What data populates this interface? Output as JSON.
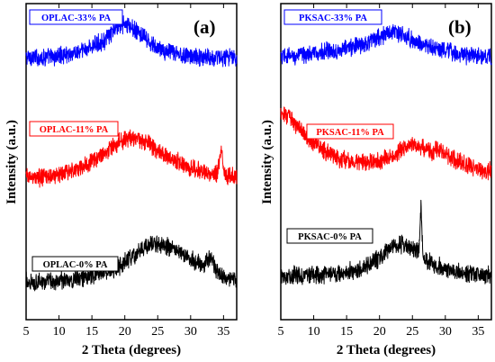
{
  "chart_data": [
    {
      "type": "line",
      "panel_label": "(a)",
      "xlabel": "2 Theta (degrees)",
      "ylabel": "Intensity (a.u.)",
      "xlim": [
        5,
        37
      ],
      "xticks": [
        5,
        10,
        15,
        20,
        25,
        30,
        35
      ],
      "yticks_shown": false,
      "legend_placement": "inline-per-series",
      "series": [
        {
          "name": "OPLAC-33% PA",
          "color": "#0000ff",
          "x": [
            5,
            7,
            9,
            11,
            13,
            15,
            17,
            18,
            19,
            20,
            21,
            22,
            23,
            24,
            26,
            28,
            30,
            32,
            34,
            36,
            37
          ],
          "y": [
            0.83,
            0.83,
            0.83,
            0.84,
            0.845,
            0.865,
            0.885,
            0.905,
            0.93,
            0.935,
            0.925,
            0.91,
            0.89,
            0.87,
            0.85,
            0.84,
            0.835,
            0.83,
            0.83,
            0.83,
            0.83
          ]
        },
        {
          "name": "OPLAC-11% PA",
          "color": "#ff0000",
          "x": [
            5,
            7,
            9,
            11,
            13,
            15,
            17,
            19,
            20,
            21,
            22,
            23,
            24,
            26,
            28,
            30,
            32,
            34,
            34.7,
            35,
            36,
            37
          ],
          "y": [
            0.45,
            0.45,
            0.455,
            0.465,
            0.48,
            0.5,
            0.53,
            0.56,
            0.57,
            0.575,
            0.57,
            0.565,
            0.55,
            0.52,
            0.5,
            0.48,
            0.465,
            0.46,
            0.55,
            0.465,
            0.455,
            0.455
          ]
        },
        {
          "name": "OPLAC-0% PA",
          "color": "#000000",
          "x": [
            5,
            7,
            9,
            11,
            13,
            15,
            17,
            19,
            21,
            22,
            23,
            24,
            25,
            26,
            27,
            28,
            30,
            31,
            32,
            33,
            34,
            35,
            36,
            37
          ],
          "y": [
            0.12,
            0.12,
            0.12,
            0.125,
            0.13,
            0.14,
            0.15,
            0.165,
            0.195,
            0.215,
            0.23,
            0.24,
            0.24,
            0.235,
            0.225,
            0.215,
            0.19,
            0.18,
            0.17,
            0.2,
            0.15,
            0.14,
            0.13,
            0.12
          ]
        }
      ]
    },
    {
      "type": "line",
      "panel_label": "(b)",
      "xlabel": "2 Theta (degrees)",
      "ylabel": "Intensity (a.u.)",
      "xlim": [
        5,
        37
      ],
      "xticks": [
        5,
        10,
        15,
        20,
        25,
        30,
        35
      ],
      "yticks_shown": false,
      "legend_placement": "inline-per-series",
      "series": [
        {
          "name": "PKSAC-33% PA",
          "color": "#0000ff",
          "x": [
            5,
            7,
            9,
            11,
            13,
            15,
            17,
            19,
            20,
            21,
            22,
            23,
            24,
            25,
            26,
            28,
            30,
            32,
            34,
            36,
            37
          ],
          "y": [
            0.83,
            0.835,
            0.84,
            0.845,
            0.85,
            0.86,
            0.87,
            0.885,
            0.895,
            0.905,
            0.91,
            0.905,
            0.895,
            0.885,
            0.875,
            0.86,
            0.85,
            0.84,
            0.835,
            0.83,
            0.83
          ]
        },
        {
          "name": "PKSAC-11% PA",
          "color": "#ff0000",
          "x": [
            5,
            6,
            7,
            8,
            9,
            10,
            12,
            14,
            16,
            18,
            20,
            22,
            24,
            25,
            26,
            27,
            28,
            29,
            30,
            32,
            34,
            36,
            37
          ],
          "y": [
            0.66,
            0.645,
            0.625,
            0.6,
            0.58,
            0.56,
            0.53,
            0.51,
            0.5,
            0.495,
            0.5,
            0.52,
            0.545,
            0.555,
            0.55,
            0.54,
            0.53,
            0.545,
            0.52,
            0.5,
            0.485,
            0.475,
            0.47
          ]
        },
        {
          "name": "PKSAC-0% PA",
          "color": "#000000",
          "x": [
            5,
            7,
            9,
            11,
            13,
            15,
            17,
            19,
            21,
            22,
            23,
            24,
            25,
            26,
            26.3,
            26.6,
            27,
            28,
            30,
            32,
            34,
            36,
            37
          ],
          "y": [
            0.14,
            0.14,
            0.14,
            0.14,
            0.145,
            0.15,
            0.16,
            0.18,
            0.21,
            0.225,
            0.235,
            0.235,
            0.225,
            0.215,
            0.36,
            0.2,
            0.19,
            0.175,
            0.16,
            0.15,
            0.145,
            0.14,
            0.14
          ]
        }
      ]
    }
  ]
}
